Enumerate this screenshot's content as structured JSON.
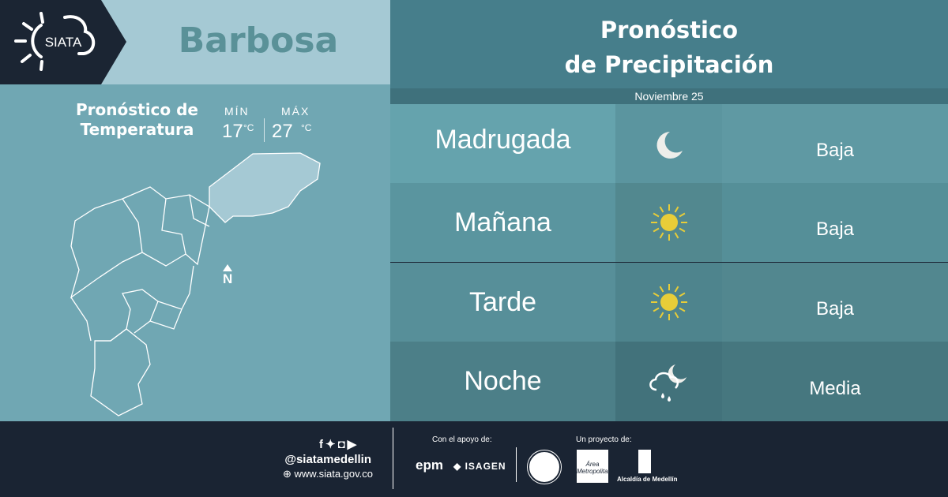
{
  "brand": {
    "logo_text": "SIATA"
  },
  "city": "Barbosa",
  "temperature": {
    "title_line1": "Pronóstico de",
    "title_line2": "Temperatura",
    "min_label": "MÍN",
    "max_label": "MÁX",
    "min_value": "17",
    "max_value": "27",
    "unit": "°C"
  },
  "map": {
    "north_label": "N"
  },
  "precipitation": {
    "title_line1": "Pronóstico",
    "title_line2": "de Precipitación",
    "date": "Noviembre 25",
    "rows": [
      {
        "period": "Madrugada",
        "icon": "moon-icon",
        "level": "Baja"
      },
      {
        "period": "Mañana",
        "icon": "sun-icon",
        "level": "Baja"
      },
      {
        "period": "Tarde",
        "icon": "sun-icon",
        "level": "Baja"
      },
      {
        "period": "Noche",
        "icon": "cloud-moon-rain-icon",
        "level": "Media"
      }
    ]
  },
  "footer": {
    "handle": "@siatamedellin",
    "website": "www.siata.gov.co",
    "support_label": "Con el apoyo de:",
    "project_label": "Un proyecto de:",
    "sponsors": [
      "epm",
      "ISAGEN"
    ],
    "partners": [
      "Área Metropolitana",
      "Alcaldía de Medellín"
    ]
  },
  "colors": {
    "dark": "#1a2433",
    "header_light": "#a5c9d4",
    "panel": "#70a7b3",
    "sun": "#e8cd38"
  }
}
